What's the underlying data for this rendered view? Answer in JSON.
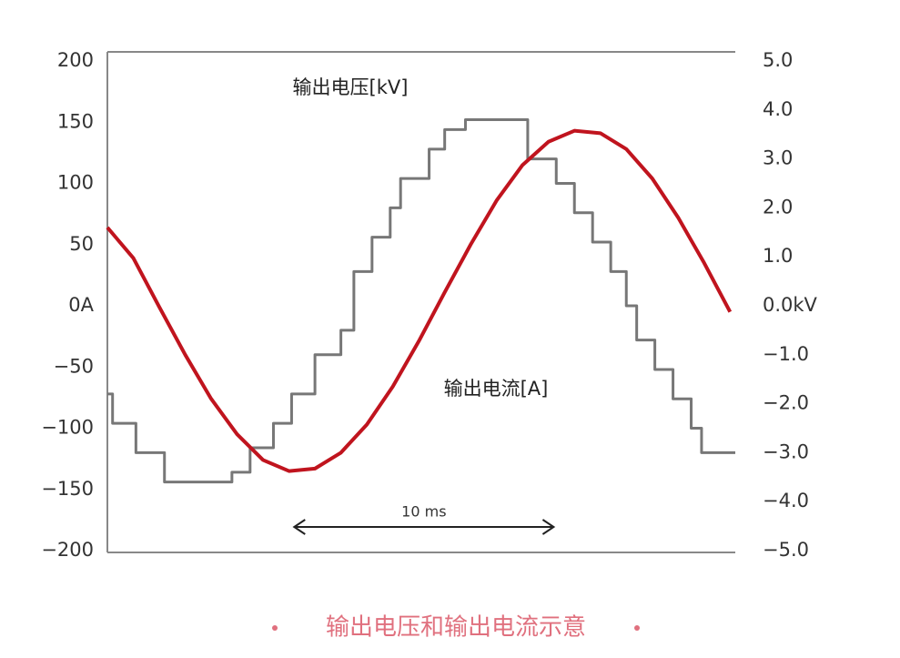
{
  "chart_data": {
    "type": "line",
    "title": "输出电压和输出电流示意",
    "xlim": [
      0,
      24.2
    ],
    "ylim": [
      -200,
      200
    ],
    "yticks": [
      {
        "value": -200,
        "label": "−200"
      },
      {
        "value": -150,
        "label": "−150"
      },
      {
        "value": -100,
        "label": "−100"
      },
      {
        "value": -50,
        "label": "−50"
      },
      {
        "value": 0,
        "label": "0A"
      },
      50,
      100,
      150,
      200
    ],
    "y2lim": [
      -5,
      5
    ],
    "y2ticks": [
      {
        "value": -5,
        "label": "−5.0"
      },
      {
        "value": -4,
        "label": "−4.0"
      },
      {
        "value": -3,
        "label": "−3.0"
      },
      {
        "value": -2,
        "label": "−2.0"
      },
      {
        "value": -1,
        "label": "−1.0"
      },
      {
        "value": 0,
        "label": "0.0kV"
      },
      {
        "value": 1,
        "label": "1.0"
      },
      {
        "value": 2,
        "label": "2.0"
      },
      {
        "value": 3,
        "label": "3.0"
      },
      {
        "value": 4,
        "label": "4.0"
      },
      {
        "value": 5,
        "label": "5.0"
      }
    ],
    "series": [
      {
        "name": "输出电压[kV]",
        "color": "#777777",
        "axis": "y2",
        "step": true,
        "x": [
          0,
          0.2,
          1.1,
          2.2,
          4.8,
          5.5,
          6.4,
          7.1,
          8,
          9,
          9.5,
          10.2,
          10.9,
          11.3,
          12.4,
          13,
          13.8,
          16.2,
          17.3,
          18,
          18.7,
          19.4,
          20,
          20.4,
          21.1,
          21.8,
          22.5,
          22.9
        ],
        "values": [
          -1.8,
          -2.4,
          -3.0,
          -3.6,
          -3.4,
          -2.9,
          -2.4,
          -1.8,
          -1.0,
          -0.5,
          0.7,
          1.4,
          2.0,
          2.6,
          3.2,
          3.6,
          3.8,
          3.0,
          2.5,
          1.9,
          1.3,
          0.7,
          0.0,
          -0.7,
          -1.3,
          -1.9,
          -2.5,
          -3.0
        ]
      },
      {
        "name": "输出电流[A]",
        "color": "#c0141e",
        "x": [
          0,
          1,
          2,
          3,
          4,
          5,
          6,
          7,
          8,
          9,
          10,
          11,
          12,
          13,
          14,
          15,
          16,
          17,
          18,
          19,
          20,
          21,
          22,
          23,
          24
        ],
        "values": [
          64,
          39,
          -1,
          -40,
          -76,
          -105,
          -126,
          -135,
          -133,
          -120,
          -97,
          -66,
          -29,
          11,
          50,
          86,
          115,
          134,
          143,
          141,
          128,
          104,
          72,
          35,
          -5
        ]
      }
    ],
    "annotations": [
      {
        "text": "10 ms",
        "x": [
          7.2,
          17.2
        ]
      }
    ]
  }
}
